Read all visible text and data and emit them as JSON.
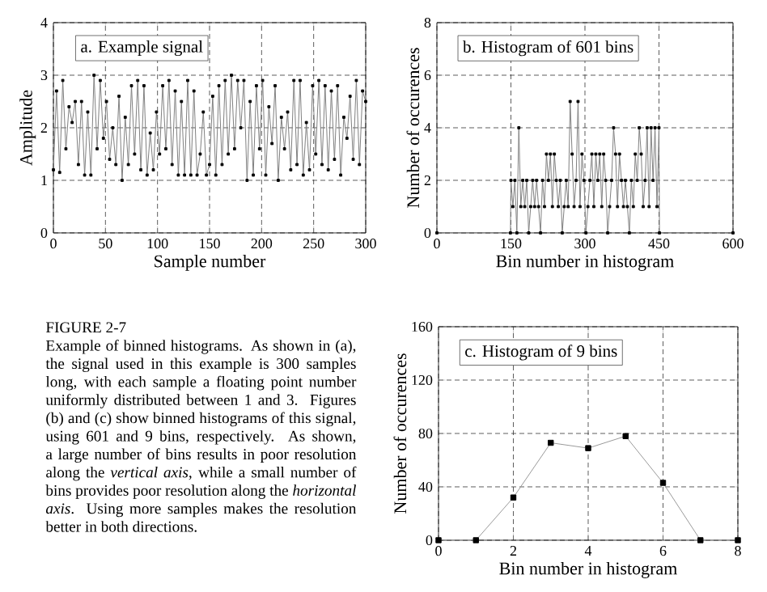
{
  "chart_data": [
    {
      "type": "line",
      "title": "a.  Example signal",
      "xlabel": "Sample number",
      "ylabel": "Amplitude",
      "xlim": [
        0,
        300
      ],
      "ylim": [
        0,
        4
      ],
      "xticks": [
        0,
        50,
        100,
        150,
        200,
        250,
        300
      ],
      "yticks": [
        0,
        1,
        2,
        3,
        4
      ],
      "grid": true,
      "marker": "square",
      "series": [
        {
          "color": "#7f7f7f",
          "x": [
            0,
            3,
            6,
            9,
            12,
            15,
            18,
            21,
            24,
            27,
            30,
            33,
            36,
            39,
            42,
            45,
            48,
            51,
            54,
            57,
            60,
            63,
            66,
            69,
            72,
            75,
            78,
            81,
            84,
            87,
            90,
            93,
            96,
            99,
            102,
            105,
            108,
            111,
            114,
            117,
            120,
            123,
            126,
            129,
            132,
            135,
            138,
            141,
            144,
            147,
            150,
            153,
            156,
            159,
            162,
            165,
            168,
            171,
            174,
            177,
            180,
            183,
            186,
            189,
            192,
            195,
            198,
            201,
            204,
            207,
            210,
            213,
            216,
            219,
            222,
            225,
            228,
            231,
            234,
            237,
            240,
            243,
            246,
            249,
            252,
            255,
            258,
            261,
            264,
            267,
            270,
            273,
            276,
            279,
            282,
            285,
            288,
            291,
            294,
            297,
            300
          ],
          "values": [
            1.2,
            2.7,
            1.15,
            2.9,
            1.6,
            2.4,
            2.1,
            2.5,
            1.3,
            2.5,
            1.1,
            2.3,
            1.1,
            3.0,
            1.6,
            2.9,
            1.8,
            2.5,
            1.4,
            2.0,
            1.3,
            2.6,
            1.0,
            2.2,
            1.3,
            2.8,
            1.5,
            2.9,
            1.2,
            2.8,
            1.1,
            1.9,
            1.2,
            2.3,
            1.5,
            2.8,
            1.6,
            2.9,
            1.3,
            2.7,
            1.1,
            2.5,
            1.1,
            2.9,
            1.1,
            2.7,
            1.1,
            1.5,
            2.3,
            1.1,
            1.3,
            2.6,
            1.1,
            2.8,
            1.3,
            2.9,
            1.5,
            3.0,
            1.6,
            2.9,
            2.0,
            2.9,
            1.0,
            2.5,
            1.1,
            2.8,
            1.6,
            2.9,
            1.1,
            2.4,
            1.7,
            2.8,
            1.0,
            2.2,
            1.6,
            2.3,
            1.2,
            2.9,
            1.3,
            2.9,
            1.1,
            2.1,
            1.2,
            2.8,
            1.5,
            2.9,
            1.3,
            2.8,
            1.2,
            2.7,
            1.4,
            2.8,
            1.1,
            2.2,
            1.8,
            2.6,
            1.4,
            2.9,
            1.3,
            2.7,
            2.5
          ]
        }
      ]
    },
    {
      "type": "line",
      "title": "b.  Histogram of 601 bins",
      "xlabel": "Bin number in histogram",
      "ylabel": "Number of occurences",
      "xlim": [
        0,
        600
      ],
      "ylim": [
        0,
        8
      ],
      "xticks": [
        0,
        150,
        300,
        450,
        600
      ],
      "yticks": [
        0,
        2,
        4,
        6,
        8
      ],
      "grid": true,
      "marker": "square",
      "series": [
        {
          "color": "#7f7f7f",
          "x": [
            0,
            149,
            150,
            154,
            158,
            162,
            166,
            170,
            174,
            178,
            182,
            186,
            190,
            194,
            198,
            202,
            206,
            210,
            214,
            218,
            222,
            226,
            230,
            234,
            238,
            242,
            246,
            250,
            254,
            258,
            262,
            266,
            270,
            274,
            278,
            282,
            286,
            290,
            294,
            298,
            302,
            306,
            310,
            314,
            318,
            322,
            326,
            330,
            334,
            338,
            342,
            346,
            350,
            354,
            358,
            362,
            366,
            370,
            374,
            378,
            382,
            386,
            390,
            394,
            398,
            402,
            406,
            410,
            414,
            418,
            422,
            426,
            430,
            434,
            438,
            442,
            446,
            450,
            451,
            600
          ],
          "values": [
            0,
            0,
            2,
            1,
            2,
            0,
            4,
            1,
            2,
            1,
            2,
            0,
            1,
            2,
            1,
            2,
            1,
            0,
            2,
            1,
            3,
            2,
            3,
            1,
            3,
            2,
            1,
            2,
            0,
            1,
            2,
            1,
            5,
            3,
            1,
            2,
            5,
            1,
            3,
            2,
            0,
            1,
            2,
            3,
            1,
            3,
            2,
            3,
            1,
            3,
            2,
            0,
            1,
            2,
            4,
            3,
            1,
            3,
            2,
            1,
            2,
            1,
            0,
            2,
            1,
            3,
            2,
            4,
            3,
            1,
            2,
            4,
            1,
            4,
            2,
            4,
            1,
            4,
            0,
            0
          ]
        }
      ]
    },
    {
      "type": "line",
      "title": "c.  Histogram of 9 bins",
      "xlabel": "Bin number in histogram",
      "ylabel": "Number of occurences",
      "xlim": [
        0,
        8
      ],
      "ylim": [
        0,
        160
      ],
      "xticks": [
        0,
        2,
        4,
        6,
        8
      ],
      "yticks": [
        0,
        40,
        80,
        120,
        160
      ],
      "grid": true,
      "marker": "square",
      "series": [
        {
          "color": "#9a9a9a",
          "x": [
            0,
            1,
            2,
            3,
            4,
            5,
            6,
            7,
            8
          ],
          "values": [
            0,
            0,
            32,
            73,
            69,
            78,
            43,
            0,
            0
          ]
        }
      ]
    },
    {
      "type": "other",
      "title": "FIGURE 2-7",
      "annotations": [
        "Example of binned histograms.  As shown in (a), the signal used in this example is 300 samples long, with each sample a floating point number uniformly distributed between 1 and 3. Figures (b) and (c) show binned histograms of this signal, using 601 and 9 bins, respectively. As shown, a large number of bins results in poor resolution along the *vertical axis*, while a small number of bins provides poor resolution along the *horizontal axis*. Using more samples  makes the resolution better in both directions."
      ]
    }
  ]
}
